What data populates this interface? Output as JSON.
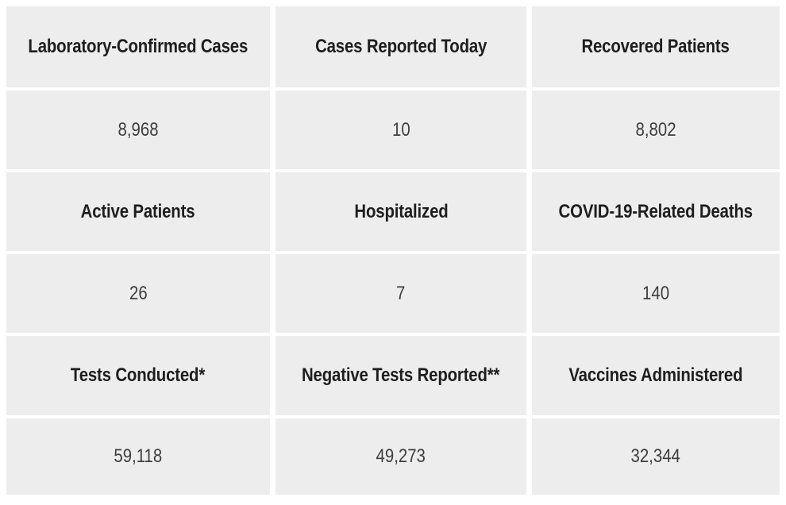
{
  "colors": {
    "page_bg": "#ffffff",
    "cell_bg": "#ededed",
    "label_text": "#1e1e1e",
    "value_text": "#3e3e3e"
  },
  "stats": [
    {
      "label": "Laboratory-Confirmed Cases",
      "value": "8,968"
    },
    {
      "label": "Cases Reported Today",
      "value": "10"
    },
    {
      "label": "Recovered Patients",
      "value": "8,802"
    },
    {
      "label": "Active Patients",
      "value": "26"
    },
    {
      "label": "Hospitalized",
      "value": "7"
    },
    {
      "label": "COVID-19-Related Deaths",
      "value": "140"
    },
    {
      "label": "Tests Conducted*",
      "value": "59,118"
    },
    {
      "label": "Negative Tests Reported**",
      "value": "49,273"
    },
    {
      "label": "Vaccines Administered",
      "value": "32,344"
    }
  ],
  "chart_data": {
    "type": "table",
    "metrics": [
      {
        "label": "Laboratory-Confirmed Cases",
        "value": 8968
      },
      {
        "label": "Cases Reported Today",
        "value": 10
      },
      {
        "label": "Recovered Patients",
        "value": 8802
      },
      {
        "label": "Active Patients",
        "value": 26
      },
      {
        "label": "Hospitalized",
        "value": 7
      },
      {
        "label": "COVID-19-Related Deaths",
        "value": 140
      },
      {
        "label": "Tests Conducted*",
        "value": 59118
      },
      {
        "label": "Negative Tests Reported**",
        "value": 49273
      },
      {
        "label": "Vaccines Administered",
        "value": 32344
      }
    ],
    "layout": {
      "columns": 3,
      "stat_rows": 3,
      "cell_arrangement": "label-cell-above-value-cell",
      "grid_on": true
    }
  }
}
